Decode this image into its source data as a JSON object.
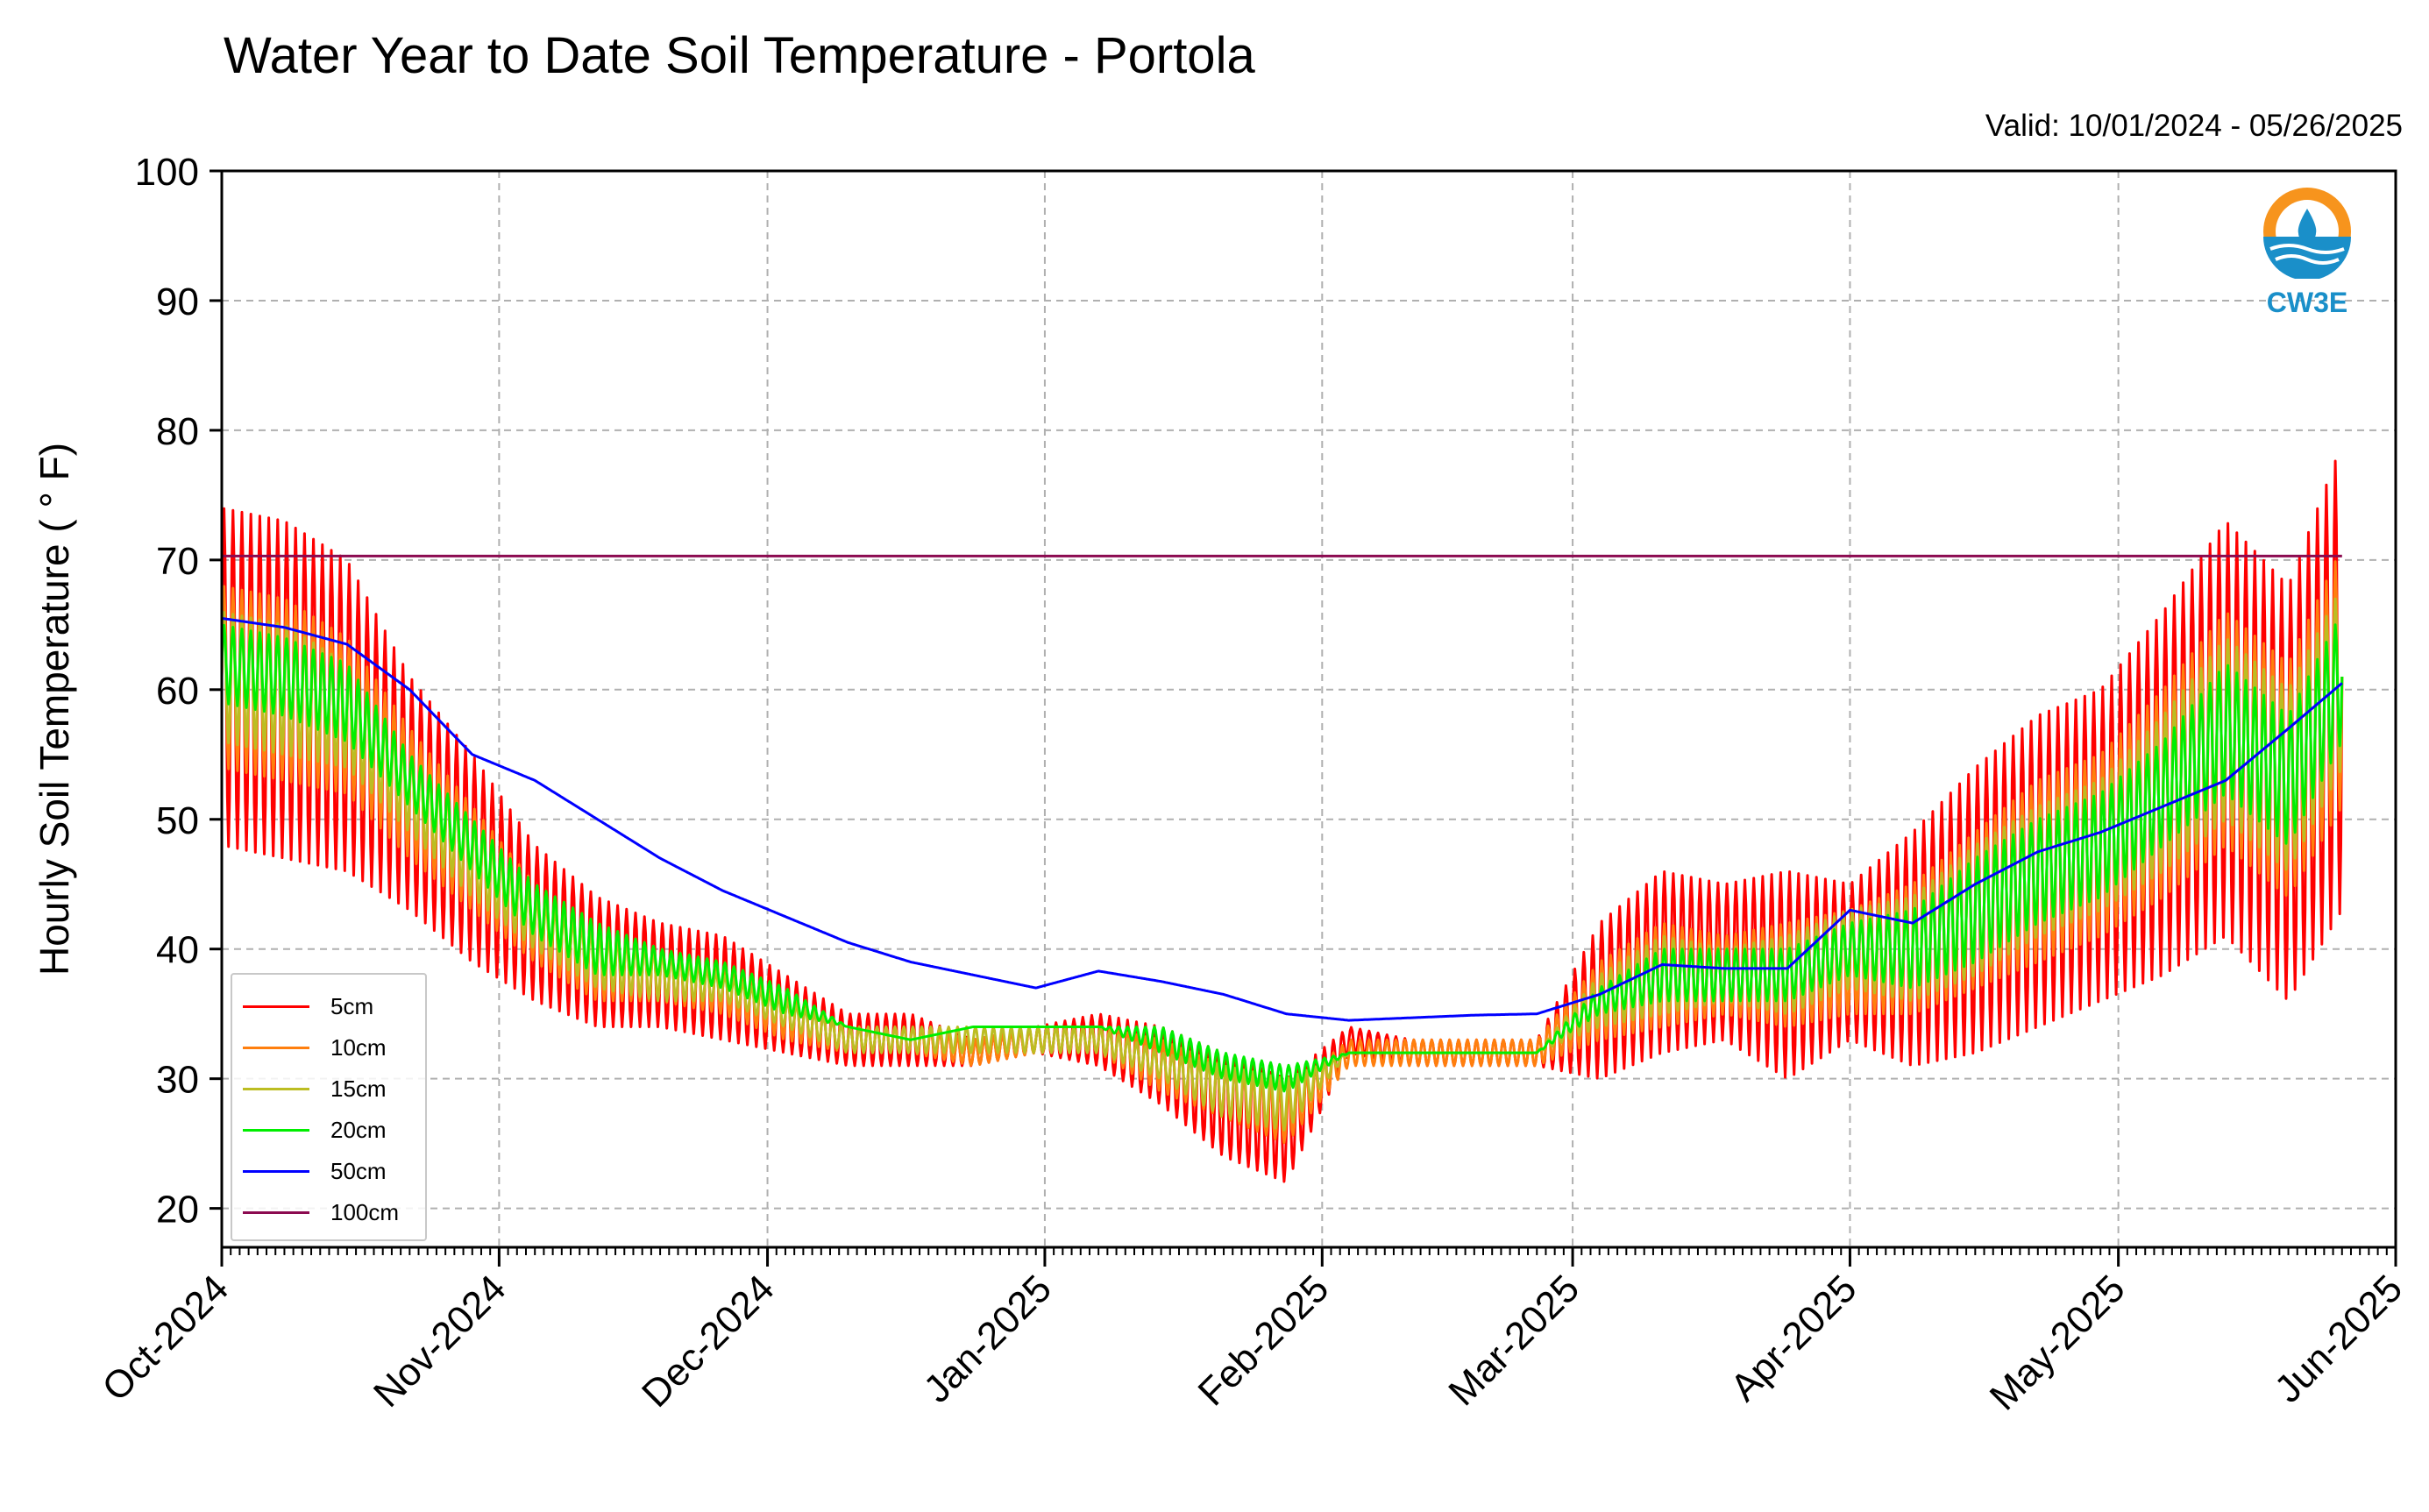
{
  "chart_data": {
    "type": "line",
    "title": "Water Year to Date Soil Temperature - Portola",
    "subtitle": "Valid: 10/01/2024 - 05/26/2025",
    "ylabel": "Hourly Soil Temperature ( ° F)",
    "xlabel": "",
    "ylim": [
      17,
      100
    ],
    "xlim": [
      "2024-10-01",
      "2025-06-01"
    ],
    "yticks": [
      "20",
      "30",
      "40",
      "50",
      "60",
      "70",
      "80",
      "90",
      "100"
    ],
    "xticks": [
      {
        "date": "2024-10-01",
        "label": "Oct-2024"
      },
      {
        "date": "2024-11-01",
        "label": "Nov-2024"
      },
      {
        "date": "2024-12-01",
        "label": "Dec-2024"
      },
      {
        "date": "2025-01-01",
        "label": "Jan-2025"
      },
      {
        "date": "2025-02-01",
        "label": "Feb-2025"
      },
      {
        "date": "2025-03-01",
        "label": "Mar-2025"
      },
      {
        "date": "2025-04-01",
        "label": "Apr-2025"
      },
      {
        "date": "2025-05-01",
        "label": "May-2025"
      },
      {
        "date": "2025-06-01",
        "label": "Jun-2025"
      }
    ],
    "grid": true,
    "legend_position": "lower-left",
    "series": [
      {
        "name": "5cm",
        "color": "#ff0000",
        "x": [
          "2024-10-01",
          "2024-10-08",
          "2024-10-15",
          "2024-10-22",
          "2024-10-29",
          "2024-11-05",
          "2024-11-12",
          "2024-11-19",
          "2024-11-26",
          "2024-12-03",
          "2024-12-10",
          "2024-12-17",
          "2024-12-24",
          "2024-12-31",
          "2025-01-07",
          "2025-01-14",
          "2025-01-21",
          "2025-01-28",
          "2025-02-04",
          "2025-02-11",
          "2025-02-18",
          "2025-02-25",
          "2025-03-04",
          "2025-03-11",
          "2025-03-18",
          "2025-03-25",
          "2025-04-01",
          "2025-04-08",
          "2025-04-15",
          "2025-04-22",
          "2025-04-29",
          "2025-05-06",
          "2025-05-13",
          "2025-05-20",
          "2025-05-26"
        ],
        "y": [
          61,
          60,
          58,
          52,
          47,
          42,
          39,
          38,
          37,
          35,
          33,
          33,
          32,
          33,
          33,
          31,
          28,
          26,
          33,
          32,
          32,
          32,
          36,
          39,
          39,
          38,
          39,
          40,
          43,
          46,
          48,
          52,
          57,
          52,
          61
        ],
        "amplitude": [
          13,
          13,
          12,
          9,
          8,
          6,
          5,
          4,
          4,
          3,
          2,
          2,
          1,
          1,
          2,
          3,
          4,
          4,
          1,
          1,
          1,
          1,
          6,
          7,
          6,
          8,
          6,
          9,
          11,
          12,
          12,
          14,
          16,
          16,
          18
        ]
      },
      {
        "name": "10cm",
        "color": "#ff7f0e",
        "x": [
          "2024-10-01",
          "2024-10-08",
          "2024-10-15",
          "2024-10-22",
          "2024-10-29",
          "2024-11-05",
          "2024-11-12",
          "2024-11-19",
          "2024-11-26",
          "2024-12-03",
          "2024-12-10",
          "2024-12-17",
          "2024-12-24",
          "2024-12-31",
          "2025-01-07",
          "2025-01-14",
          "2025-01-21",
          "2025-01-28",
          "2025-02-04",
          "2025-02-11",
          "2025-02-18",
          "2025-02-25",
          "2025-03-04",
          "2025-03-11",
          "2025-03-18",
          "2025-03-25",
          "2025-04-01",
          "2025-04-08",
          "2025-04-15",
          "2025-04-22",
          "2025-04-29",
          "2025-05-06",
          "2025-05-13",
          "2025-05-20",
          "2025-05-26"
        ],
        "y": [
          61,
          60,
          58,
          52,
          47,
          42,
          39,
          38,
          37,
          35,
          33,
          33,
          32,
          33,
          33,
          31,
          29,
          27,
          32,
          32,
          32,
          32,
          36,
          38,
          38,
          38,
          39,
          40,
          43,
          46,
          48,
          52,
          57,
          53,
          61
        ],
        "amplitude": [
          7,
          7,
          6,
          5,
          4,
          3,
          3,
          2,
          2,
          2,
          1,
          1,
          1,
          1,
          1,
          2,
          2,
          2,
          1,
          1,
          1,
          1,
          3,
          4,
          3,
          4,
          4,
          5,
          6,
          7,
          7,
          8,
          9,
          9,
          10
        ]
      },
      {
        "name": "15cm",
        "color": "#bcbd22",
        "x": [
          "2024-10-01",
          "2024-10-08",
          "2024-10-15",
          "2024-10-22",
          "2024-10-29",
          "2024-11-05",
          "2024-11-12",
          "2024-11-19",
          "2024-11-26",
          "2024-12-03",
          "2024-12-10",
          "2024-12-17",
          "2024-12-24",
          "2024-12-31",
          "2025-01-07",
          "2025-01-14",
          "2025-01-21",
          "2025-01-28",
          "2025-02-04",
          "2025-02-11",
          "2025-02-18",
          "2025-02-25",
          "2025-03-04",
          "2025-03-11",
          "2025-03-18",
          "2025-03-25",
          "2025-04-01",
          "2025-04-08",
          "2025-04-15",
          "2025-04-22",
          "2025-04-29",
          "2025-05-06",
          "2025-05-13",
          "2025-05-20",
          "2025-05-26"
        ],
        "y": [
          61,
          60,
          58,
          52,
          47,
          42,
          39,
          38,
          37,
          35,
          33,
          33,
          33,
          33,
          33,
          31,
          29,
          28,
          32,
          32,
          32,
          32,
          36,
          38,
          38,
          38,
          40,
          40,
          43,
          46,
          48,
          52,
          57,
          53,
          61
        ],
        "amplitude": [
          5,
          5,
          4,
          3,
          3,
          2,
          2,
          2,
          1,
          1,
          1,
          1,
          1,
          1,
          1,
          1,
          2,
          2,
          0,
          0,
          0,
          0,
          2,
          3,
          2,
          3,
          3,
          4,
          5,
          5,
          5,
          6,
          7,
          7,
          7
        ]
      },
      {
        "name": "20cm",
        "color": "#00ee00",
        "x": [
          "2024-10-01",
          "2024-10-08",
          "2024-10-15",
          "2024-10-22",
          "2024-10-29",
          "2024-11-05",
          "2024-11-12",
          "2024-11-19",
          "2024-11-26",
          "2024-12-03",
          "2024-12-10",
          "2024-12-17",
          "2024-12-24",
          "2024-12-31",
          "2025-01-07",
          "2025-01-14",
          "2025-01-21",
          "2025-01-28",
          "2025-02-04",
          "2025-02-11",
          "2025-02-18",
          "2025-02-25",
          "2025-03-04",
          "2025-03-11",
          "2025-03-18",
          "2025-03-25",
          "2025-04-01",
          "2025-04-08",
          "2025-04-15",
          "2025-04-22",
          "2025-04-29",
          "2025-05-06",
          "2025-05-13",
          "2025-05-20",
          "2025-05-26"
        ],
        "y": [
          62,
          61,
          59,
          53,
          48,
          43,
          40,
          39,
          38,
          36,
          34,
          33,
          34,
          34,
          34,
          33,
          31,
          30,
          32,
          32,
          32,
          32,
          36,
          38,
          38,
          38,
          40,
          40,
          43,
          46,
          48,
          52,
          57,
          53,
          61
        ],
        "amplitude": [
          3,
          3,
          3,
          2,
          2,
          2,
          2,
          1,
          1,
          1,
          0,
          0,
          0,
          0,
          0,
          1,
          1,
          1,
          0,
          0,
          0,
          0,
          1,
          2,
          2,
          2,
          2,
          3,
          4,
          4,
          4,
          4,
          5,
          5,
          5
        ]
      },
      {
        "name": "50cm",
        "color": "#0000ff",
        "x": [
          "2024-10-01",
          "2024-10-08",
          "2024-10-15",
          "2024-10-22",
          "2024-10-29",
          "2024-11-05",
          "2024-11-12",
          "2024-11-19",
          "2024-11-26",
          "2024-12-03",
          "2024-12-10",
          "2024-12-17",
          "2024-12-24",
          "2024-12-31",
          "2025-01-07",
          "2025-01-14",
          "2025-01-21",
          "2025-01-28",
          "2025-02-04",
          "2025-02-11",
          "2025-02-18",
          "2025-02-25",
          "2025-03-04",
          "2025-03-11",
          "2025-03-18",
          "2025-03-25",
          "2025-04-01",
          "2025-04-08",
          "2025-04-15",
          "2025-04-22",
          "2025-04-29",
          "2025-05-06",
          "2025-05-13",
          "2025-05-20",
          "2025-05-26"
        ],
        "y": [
          65.5,
          64.8,
          63.5,
          60,
          55,
          53,
          50,
          47,
          44.5,
          42.5,
          40.5,
          39,
          38,
          37,
          38.3,
          37.5,
          36.5,
          35,
          34.5,
          34.7,
          34.9,
          35,
          36.5,
          38.8,
          38.5,
          38.5,
          43,
          42,
          45,
          47.5,
          49,
          51,
          53,
          57,
          60.5
        ],
        "amplitude": [
          0,
          0,
          0,
          0,
          0,
          0,
          0,
          0,
          0,
          0,
          0,
          0,
          0,
          0,
          0,
          0,
          0,
          0,
          0,
          0,
          0,
          0,
          0,
          0,
          0,
          0,
          0,
          0,
          0,
          0,
          0,
          0,
          0,
          0,
          0
        ]
      },
      {
        "name": "100cm",
        "color": "#8b0a50",
        "x": [
          "2024-10-01",
          "2025-05-26"
        ],
        "y": [
          70.3,
          70.3
        ],
        "amplitude": [
          0,
          0
        ]
      }
    ]
  },
  "logo": {
    "text": "CW3E"
  }
}
